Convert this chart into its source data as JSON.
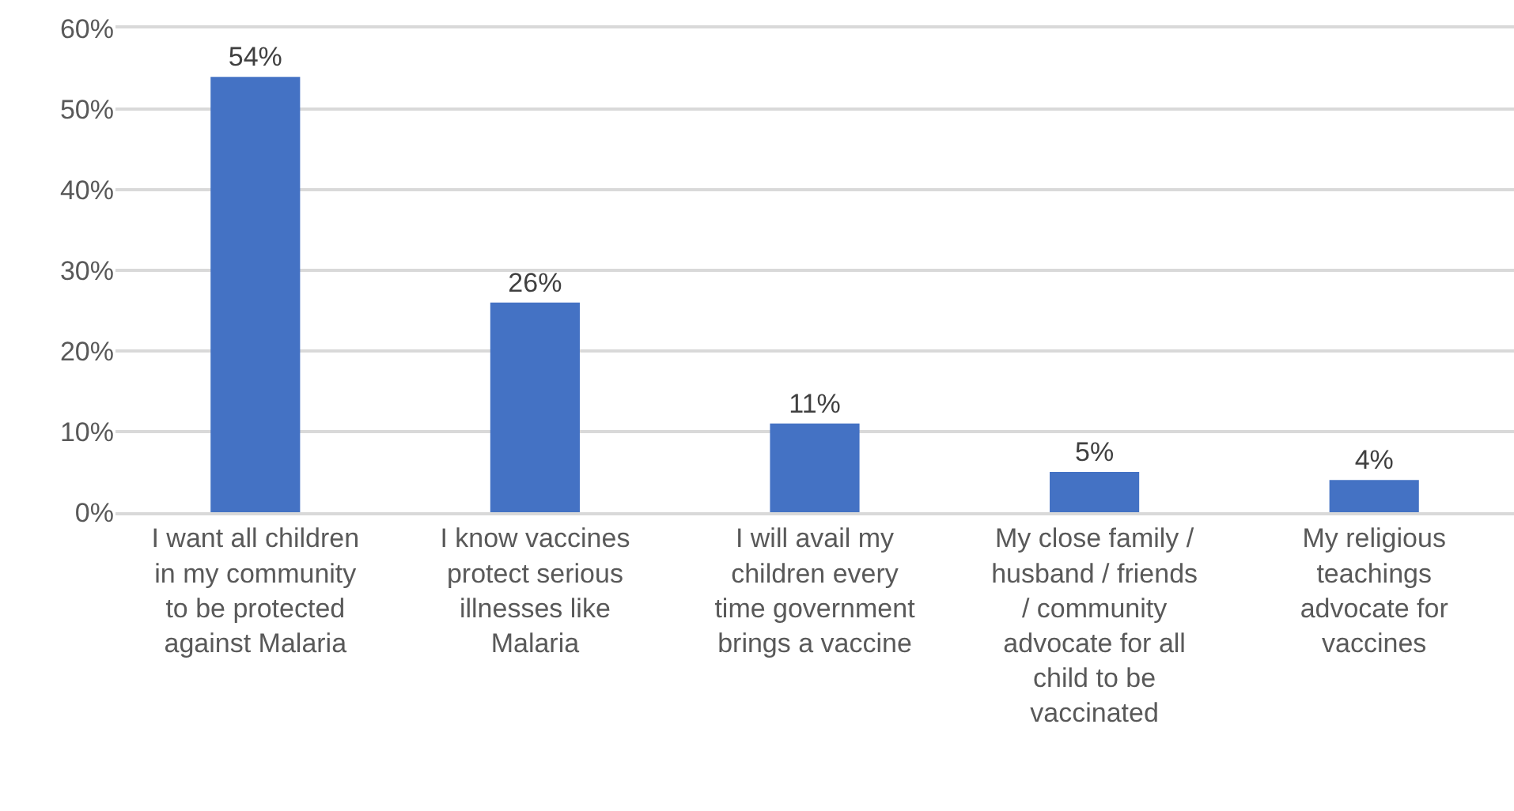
{
  "chart_data": {
    "type": "bar",
    "categories": [
      "I want all children in my community to be protected against Malaria",
      "I know vaccines protect serious illnesses like Malaria",
      "I will avail my children every time government brings a vaccine",
      "My close family / husband / friends / community advocate for all child to be vaccinated",
      "My religious teachings advocate for vaccines"
    ],
    "values": [
      54,
      26,
      11,
      5,
      4
    ],
    "value_labels": [
      "54%",
      "26%",
      "11%",
      "5%",
      "4%"
    ],
    "color": "#4472c4",
    "ylim": [
      0,
      60
    ],
    "yticks": [
      {
        "value": 0,
        "label": "0%"
      },
      {
        "value": 10,
        "label": "10%"
      },
      {
        "value": 20,
        "label": "20%"
      },
      {
        "value": 30,
        "label": "30%"
      },
      {
        "value": 40,
        "label": "40%"
      },
      {
        "value": 50,
        "label": "50%"
      },
      {
        "value": 60,
        "label": "60%"
      }
    ],
    "grid": "y"
  }
}
